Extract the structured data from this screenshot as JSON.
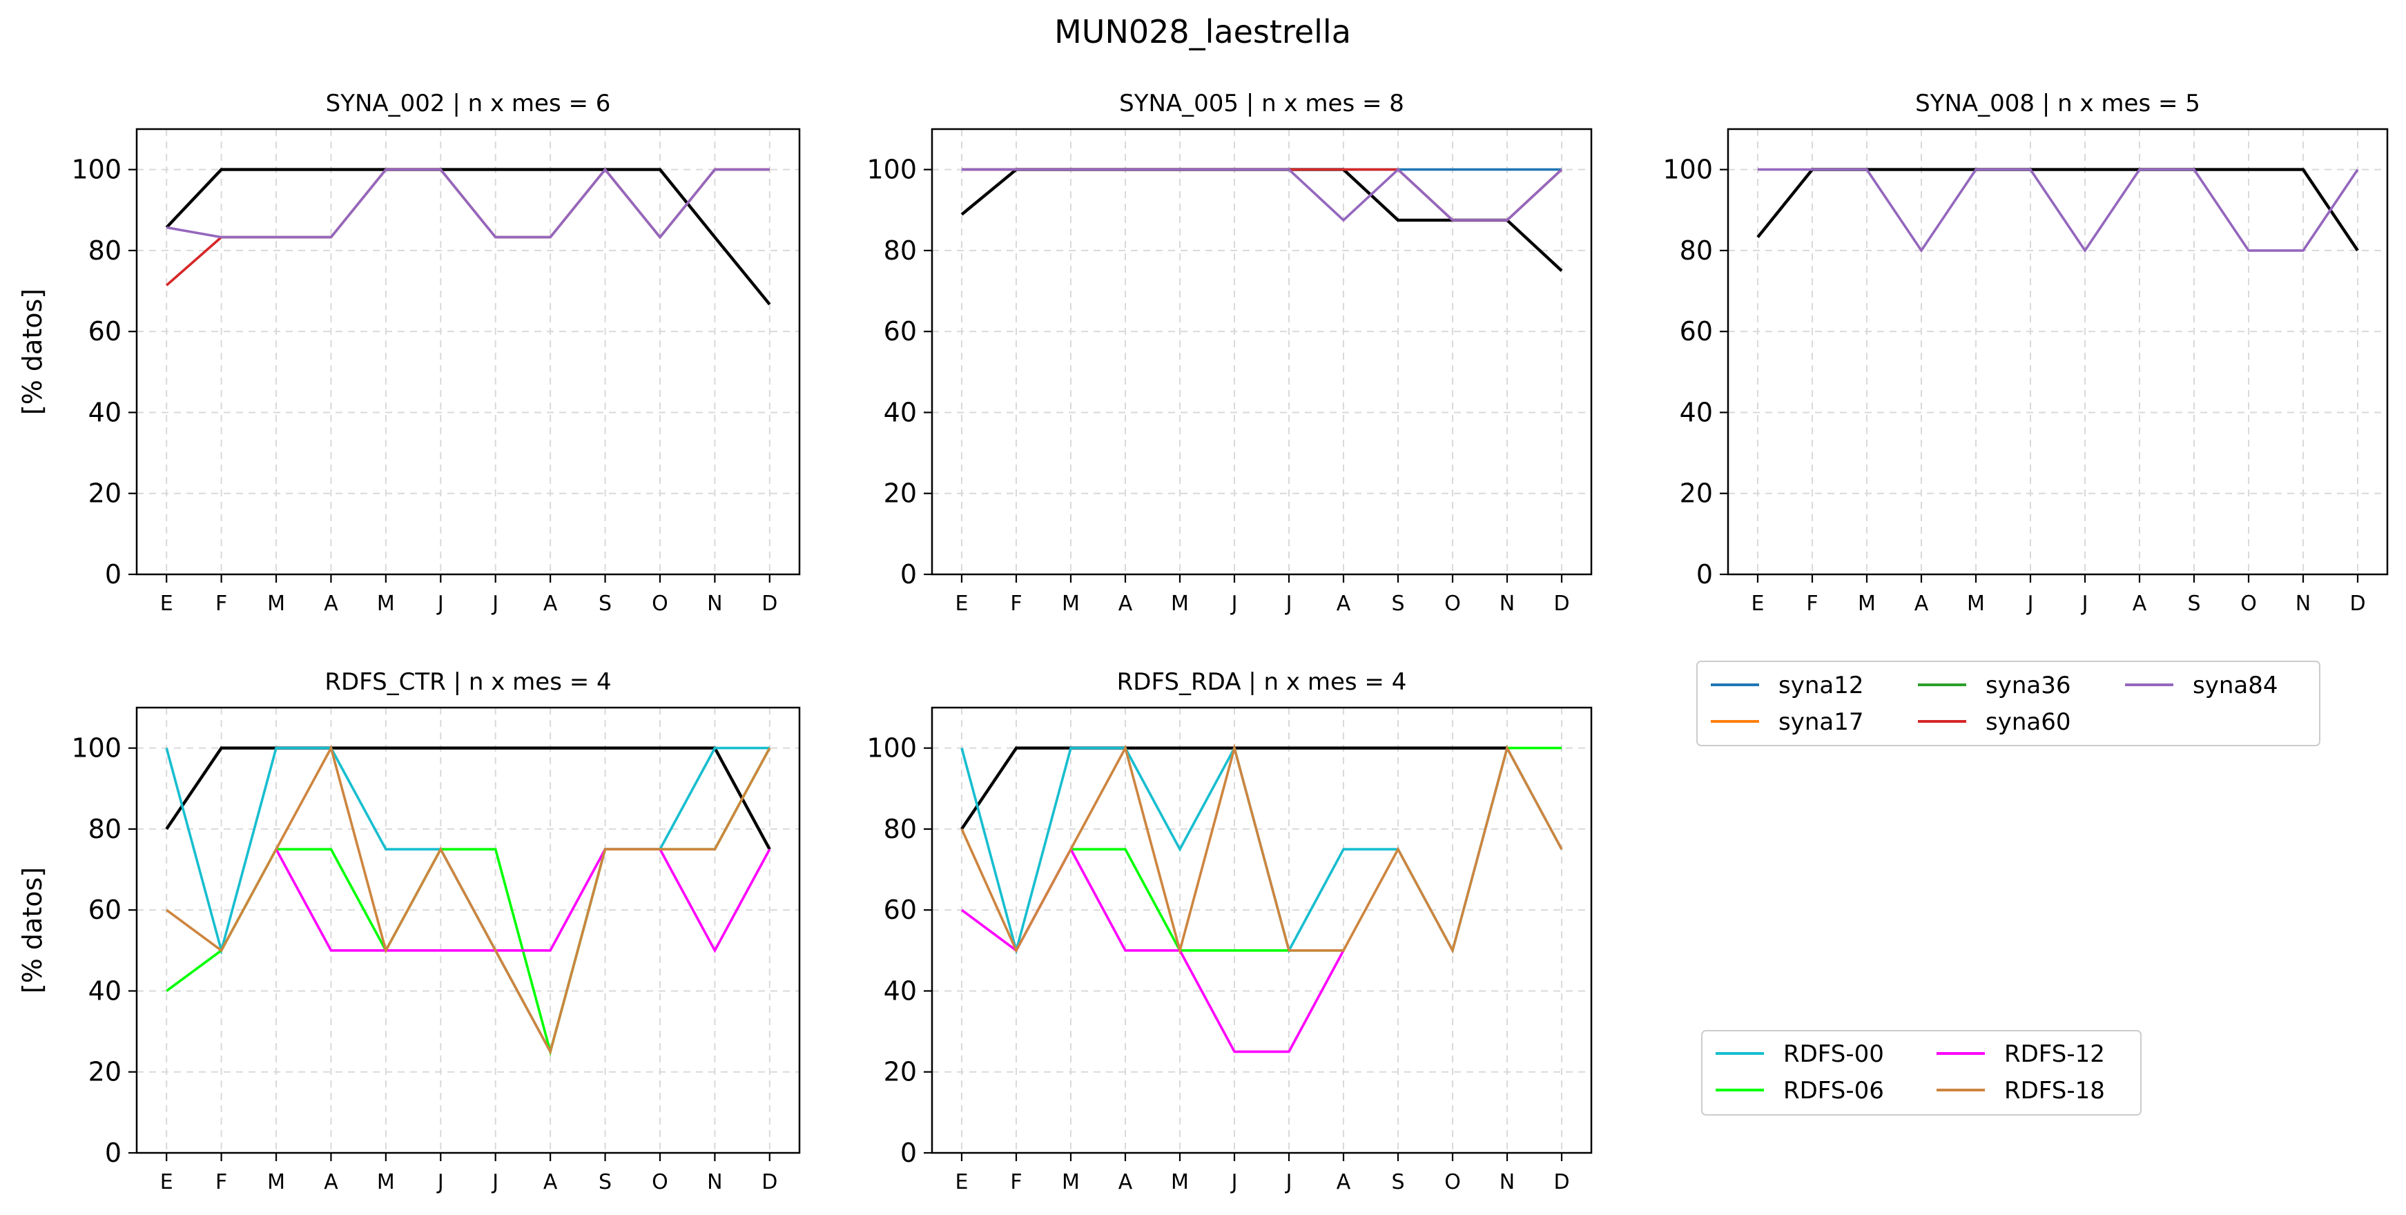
{
  "suptitle": "MUN028_laestrella",
  "ylabel": "[% datos]",
  "months": [
    "E",
    "F",
    "M",
    "A",
    "M",
    "J",
    "J",
    "A",
    "S",
    "O",
    "N",
    "D"
  ],
  "yticks": [
    "0",
    "20",
    "40",
    "60",
    "80",
    "100"
  ],
  "legend_syna": [
    {
      "name": "syna12",
      "color": "#1f77b4"
    },
    {
      "name": "syna17",
      "color": "#ff7f0e"
    },
    {
      "name": "syna36",
      "color": "#2ca02c"
    },
    {
      "name": "syna60",
      "color": "#d62728"
    },
    {
      "name": "syna84",
      "color": "#9467bd"
    }
  ],
  "legend_rdfs": [
    {
      "name": "RDFS-00",
      "color": "#17becf"
    },
    {
      "name": "RDFS-06",
      "color": "#00ff00"
    },
    {
      "name": "RDFS-12",
      "color": "#ff00ff"
    },
    {
      "name": "RDFS-18",
      "color": "#cd853f"
    }
  ],
  "chart_data": [
    {
      "type": "line",
      "title": "SYNA_002 | n x mes =  6",
      "categories": [
        "E",
        "F",
        "M",
        "A",
        "M",
        "J",
        "J",
        "A",
        "S",
        "O",
        "N",
        "D"
      ],
      "ylim": [
        0,
        110
      ],
      "ylabel": "[% datos]",
      "grid": true,
      "series": [
        {
          "color": "#000000",
          "values": [
            85.7,
            100,
            100,
            100,
            100,
            100,
            100,
            100,
            100,
            100,
            83.3,
            66.7
          ]
        },
        {
          "name": "syna60",
          "color": "#d62728",
          "values": [
            71.4,
            83.3,
            83.3,
            83.3,
            100,
            100,
            83.3,
            83.3,
            100,
            83.3,
            100,
            100
          ]
        },
        {
          "name": "syna84",
          "color": "#9467bd",
          "values": [
            85.7,
            83.3,
            83.3,
            83.3,
            100,
            100,
            83.3,
            83.3,
            100,
            83.3,
            100,
            100
          ]
        }
      ]
    },
    {
      "type": "line",
      "title": "SYNA_005 | n x mes =  8",
      "categories": [
        "E",
        "F",
        "M",
        "A",
        "M",
        "J",
        "J",
        "A",
        "S",
        "O",
        "N",
        "D"
      ],
      "ylim": [
        0,
        110
      ],
      "grid": true,
      "series": [
        {
          "color": "#000000",
          "values": [
            88.9,
            100,
            100,
            100,
            100,
            100,
            100,
            100,
            87.5,
            87.5,
            87.5,
            75
          ]
        },
        {
          "name": "syna12",
          "color": "#1f77b4",
          "values": [
            100,
            100,
            100,
            100,
            100,
            100,
            100,
            100,
            100,
            100,
            100,
            100
          ]
        },
        {
          "name": "syna60",
          "color": "#d62728",
          "values": [
            100,
            100,
            100,
            100,
            100,
            100,
            100,
            100,
            100,
            87.5,
            87.5,
            100
          ]
        },
        {
          "name": "syna84",
          "color": "#9467bd",
          "values": [
            100,
            100,
            100,
            100,
            100,
            100,
            100,
            87.5,
            100,
            87.5,
            87.5,
            100
          ]
        }
      ]
    },
    {
      "type": "line",
      "title": "SYNA_008 | n x mes =  5",
      "categories": [
        "E",
        "F",
        "M",
        "A",
        "M",
        "J",
        "J",
        "A",
        "S",
        "O",
        "N",
        "D"
      ],
      "ylim": [
        0,
        110
      ],
      "grid": true,
      "series": [
        {
          "color": "#000000",
          "values": [
            83.3,
            100,
            100,
            100,
            100,
            100,
            100,
            100,
            100,
            100,
            100,
            80
          ]
        },
        {
          "name": "syna84",
          "color": "#9467bd",
          "values": [
            100,
            100,
            100,
            80,
            100,
            100,
            80,
            100,
            100,
            80,
            80,
            100
          ]
        }
      ]
    },
    {
      "type": "line",
      "title": "RDFS_CTR | n x mes =  4",
      "categories": [
        "E",
        "F",
        "M",
        "A",
        "M",
        "J",
        "J",
        "A",
        "S",
        "O",
        "N",
        "D"
      ],
      "ylim": [
        0,
        110
      ],
      "ylabel": "[% datos]",
      "grid": true,
      "series": [
        {
          "color": "#000000",
          "values": [
            80,
            100,
            100,
            100,
            100,
            100,
            100,
            100,
            100,
            100,
            100,
            75
          ]
        },
        {
          "name": "RDFS-00",
          "color": "#17becf",
          "values": [
            100,
            50,
            100,
            100,
            75,
            75,
            50,
            25,
            75,
            75,
            100,
            100
          ]
        },
        {
          "name": "RDFS-06",
          "color": "#00ff00",
          "values": [
            40,
            50,
            75,
            75,
            50,
            75,
            75,
            25,
            75,
            75,
            75,
            100
          ]
        },
        {
          "name": "RDFS-12",
          "color": "#ff00ff",
          "values": [
            null,
            null,
            75,
            50,
            50,
            50,
            50,
            50,
            75,
            75,
            50,
            75
          ]
        },
        {
          "name": "RDFS-18",
          "color": "#cd853f",
          "values": [
            60,
            50,
            75,
            100,
            50,
            75,
            50,
            25,
            75,
            75,
            75,
            100
          ]
        }
      ]
    },
    {
      "type": "line",
      "title": "RDFS_RDA | n x mes =  4",
      "categories": [
        "E",
        "F",
        "M",
        "A",
        "M",
        "J",
        "J",
        "A",
        "S",
        "O",
        "N",
        "D"
      ],
      "ylim": [
        0,
        110
      ],
      "grid": true,
      "series": [
        {
          "color": "#000000",
          "values": [
            80,
            100,
            100,
            100,
            100,
            100,
            100,
            100,
            100,
            100,
            100,
            null
          ]
        },
        {
          "name": "RDFS-00",
          "color": "#17becf",
          "values": [
            100,
            50,
            100,
            100,
            75,
            100,
            50,
            75,
            75,
            50,
            100,
            75
          ]
        },
        {
          "name": "RDFS-06",
          "color": "#00ff00",
          "values": [
            null,
            null,
            75,
            75,
            50,
            50,
            50,
            50,
            null,
            null,
            100,
            100
          ]
        },
        {
          "name": "RDFS-12",
          "color": "#ff00ff",
          "values": [
            60,
            50,
            75,
            50,
            50,
            25,
            25,
            50,
            null,
            null,
            null,
            null
          ]
        },
        {
          "name": "RDFS-18",
          "color": "#cd853f",
          "values": [
            80,
            50,
            75,
            100,
            50,
            100,
            50,
            50,
            75,
            50,
            100,
            75
          ]
        }
      ]
    }
  ]
}
